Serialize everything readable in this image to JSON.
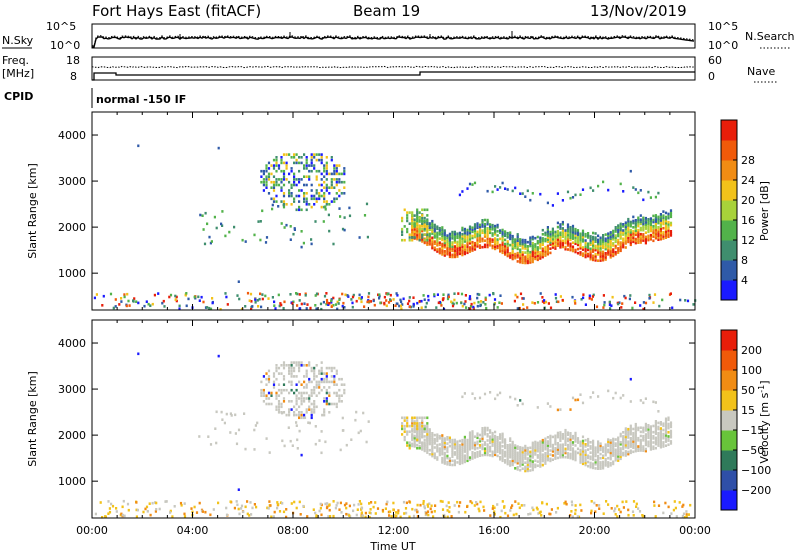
{
  "header": {
    "title": "Fort Hays East (fitACF)",
    "beam": "Beam 19",
    "date": "13/Nov/2019"
  },
  "strip_sky": {
    "label": "N.Sky",
    "right_label": "N.Search",
    "left_ticks": [
      "10^5",
      "10^0"
    ],
    "right_ticks": [
      "10^5",
      "10^0"
    ]
  },
  "strip_freq": {
    "label_lines": [
      "Freq.",
      "[MHz]"
    ],
    "left_ticks": [
      "18",
      "8"
    ],
    "right_ticks": [
      "60",
      "0"
    ],
    "right_label": "Nave"
  },
  "cpid": {
    "label": "CPID",
    "mode_text": "normal -150 IF"
  },
  "colors": {
    "power": [
      "#1a1aff",
      "#2f5aa8",
      "#3f8e6e",
      "#52b24a",
      "#a8d23a",
      "#f2c21a",
      "#f08c14",
      "#f05a0a",
      "#e81e0a"
    ],
    "velocity": [
      "#1a1aff",
      "#2f4fa8",
      "#2f7a5a",
      "#68c43a",
      "#c8c8c0",
      "#f2c21a",
      "#f08c14",
      "#f05a0a",
      "#e81e0a"
    ],
    "gs": "#c8c8c0"
  },
  "chart_data": [
    {
      "type": "heatmap",
      "name": "power",
      "ylabel": "Slant Range [km]",
      "yticks": [
        1000,
        2000,
        3000,
        4000
      ],
      "ylim": [
        200,
        4500
      ],
      "xticks": [
        "00:00",
        "04:00",
        "08:00",
        "12:00",
        "16:00",
        "20:00",
        "00:00"
      ],
      "xlim_hours": [
        0,
        24
      ],
      "colorbar": {
        "label": "Power [dB]",
        "ticks": [
          4,
          8,
          12,
          16,
          20,
          24,
          28
        ],
        "range": [
          0,
          30
        ]
      }
    },
    {
      "type": "heatmap",
      "name": "velocity",
      "ylabel": "Slant Range [km]",
      "yticks": [
        1000,
        2000,
        3000,
        4000
      ],
      "ylim": [
        200,
        4500
      ],
      "xticks": [
        "00:00",
        "04:00",
        "08:00",
        "12:00",
        "16:00",
        "20:00",
        "00:00"
      ],
      "xlabel": "Time UT",
      "colorbar": {
        "label_main": "Velocity [m s",
        "label_sup": "-1",
        "label_end": "]",
        "ticks": [
          "200",
          "100",
          "50",
          "15",
          "−15",
          "−50",
          "−100",
          "−200"
        ]
      }
    }
  ]
}
